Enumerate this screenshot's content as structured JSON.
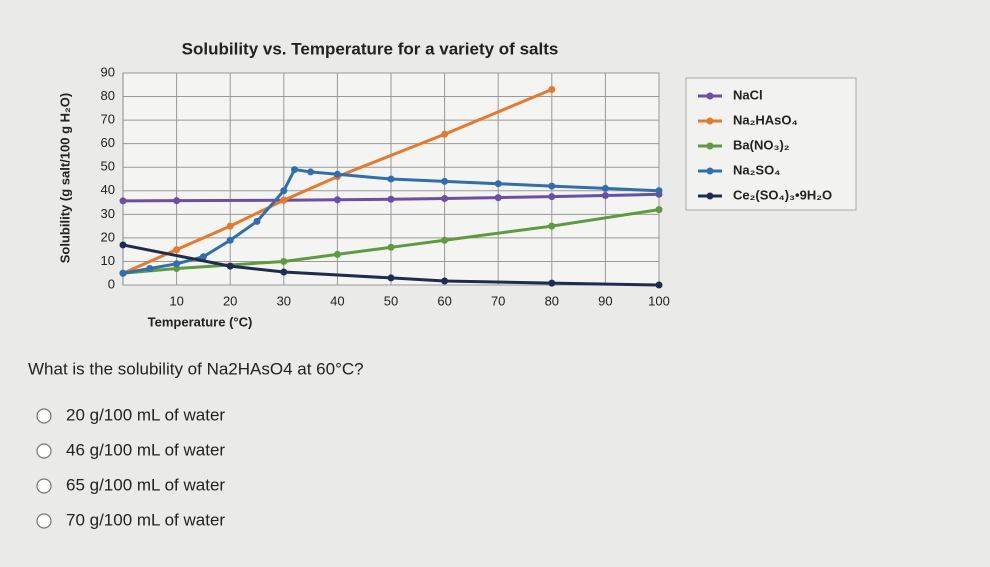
{
  "chart_data": {
    "type": "line",
    "title": "Solubility vs. Temperature for a variety of salts",
    "xlabel": "Temperature (°C)",
    "ylabel": "Solubility (g salt/100 g H₂O)",
    "xlim": [
      0,
      100
    ],
    "ylim": [
      0,
      90
    ],
    "xticks": [
      10,
      20,
      30,
      40,
      50,
      60,
      70,
      80,
      90,
      100
    ],
    "yticks": [
      0,
      10,
      20,
      30,
      40,
      50,
      60,
      70,
      80,
      90
    ],
    "grid": true,
    "series": [
      {
        "name": "NaCl",
        "color": "#6b4fa6",
        "x": [
          0,
          10,
          30,
          40,
          50,
          60,
          70,
          80,
          90,
          100
        ],
        "values": [
          35.7,
          35.8,
          36,
          36.2,
          36.4,
          36.7,
          37.1,
          37.5,
          38,
          38.5
        ]
      },
      {
        "name": "Na₂HAsO₄",
        "color": "#e8792a",
        "x": [
          0,
          10,
          20,
          30,
          40,
          60,
          80
        ],
        "values": [
          5,
          15,
          25,
          36,
          46,
          64,
          83
        ]
      },
      {
        "name": "Ba(NO₃)₂",
        "color": "#5e9a3e",
        "x": [
          0,
          10,
          30,
          40,
          50,
          60,
          80,
          100
        ],
        "values": [
          5,
          7,
          10,
          13,
          16,
          19,
          25,
          32
        ]
      },
      {
        "name": "Na₂SO₄",
        "color": "#2f6fb0",
        "x": [
          0,
          5,
          10,
          15,
          20,
          25,
          30,
          32,
          35,
          40,
          50,
          60,
          70,
          80,
          90,
          100
        ],
        "values": [
          5,
          7,
          9,
          12,
          19,
          27,
          40,
          49,
          48,
          47,
          45,
          44,
          43,
          42,
          41,
          40
        ]
      },
      {
        "name": "Ce₂(SO₄)₃•9H₂O",
        "color": "#1e2d4f",
        "x": [
          0,
          20,
          30,
          50,
          60,
          80,
          100
        ],
        "values": [
          17,
          8,
          5.5,
          3,
          1.7,
          0.8,
          0
        ]
      }
    ]
  },
  "question": "What is the solubility of Na2HAsO4 at 60°C?",
  "options": [
    "20 g/100 mL of water",
    "46 g/100 mL of water",
    "65 g/100 mL of water",
    "70 g/100 mL of water"
  ]
}
